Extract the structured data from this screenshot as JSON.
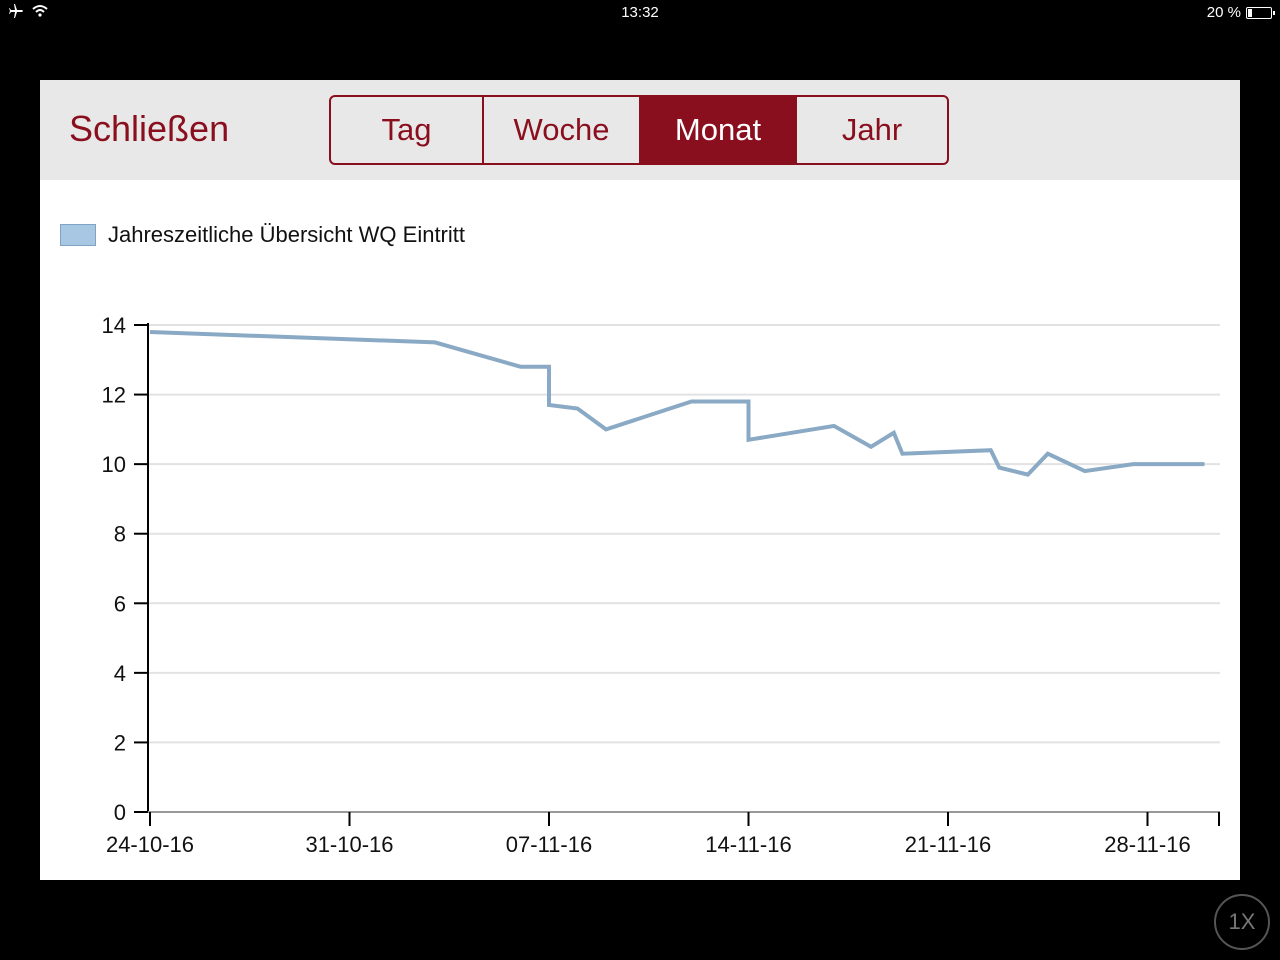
{
  "statusbar": {
    "time": "13:32",
    "battery_text": "20 %",
    "icons": [
      "airplane-icon",
      "wifi-icon",
      "battery-icon"
    ]
  },
  "toolbar": {
    "close_label": "Schließen",
    "tabs": [
      {
        "label": "Tag",
        "active": false
      },
      {
        "label": "Woche",
        "active": false
      },
      {
        "label": "Monat",
        "active": true
      },
      {
        "label": "Jahr",
        "active": false
      }
    ]
  },
  "colors": {
    "accent": "#8a0f1e",
    "toolbar_bg": "#e8e8e8",
    "series": "#8aa9c4",
    "legend_swatch": "#a7c7e2"
  },
  "chart_data": {
    "type": "line",
    "title": "",
    "xlabel": "",
    "ylabel": "",
    "legend": "top-left",
    "grid": true,
    "ylim": [
      0,
      14
    ],
    "yticks": [
      "0",
      "2",
      "4",
      "6",
      "8",
      "10",
      "12",
      "14"
    ],
    "xticks": [
      "24-10-16",
      "31-10-16",
      "07-11-16",
      "14-11-16",
      "21-11-16",
      "28-11-16"
    ],
    "series": [
      {
        "name": "Jahreszeitliche Übersicht WQ Eintritt",
        "x": [
          "2016-10-24",
          "2016-11-03",
          "2016-11-06",
          "2016-11-07",
          "2016-11-07",
          "2016-11-08",
          "2016-11-09",
          "2016-11-12",
          "2016-11-14",
          "2016-11-14",
          "2016-11-17",
          "2016-11-18.3",
          "2016-11-19.1",
          "2016-11-19.4",
          "2016-11-22.5",
          "2016-11-22.8",
          "2016-11-23.8",
          "2016-11-24.5",
          "2016-11-25.8",
          "2016-11-27.5",
          "2016-11-30"
        ],
        "values": [
          13.8,
          13.5,
          12.8,
          12.8,
          11.7,
          11.6,
          11.0,
          11.8,
          11.8,
          10.7,
          11.1,
          10.5,
          10.9,
          10.3,
          10.4,
          9.9,
          9.7,
          10.3,
          9.8,
          10.0,
          10.0
        ]
      }
    ]
  },
  "overlay": {
    "speed_label": "1X"
  }
}
